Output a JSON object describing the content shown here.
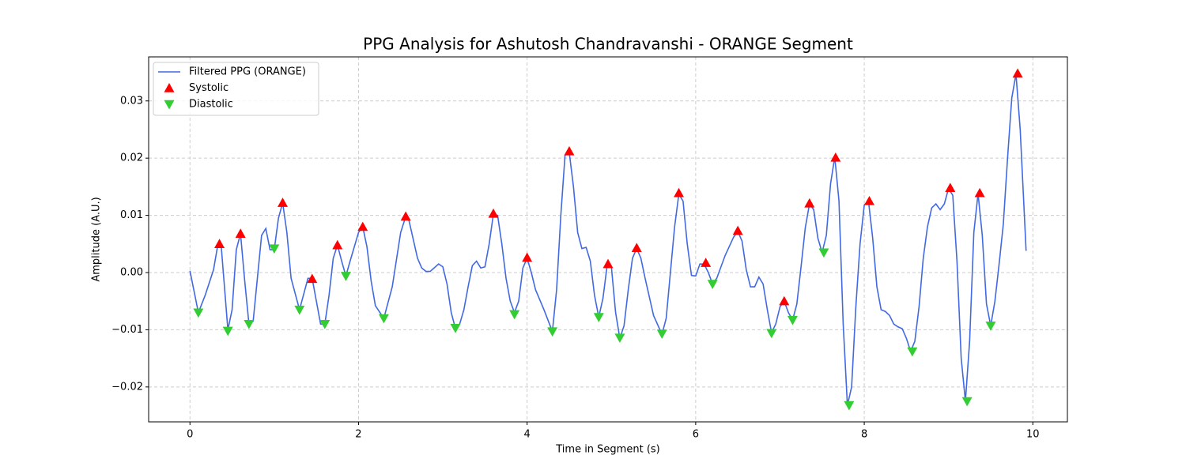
{
  "chart_data": {
    "type": "line",
    "title": "PPG Analysis for Ashutosh Chandravanshi - ORANGE Segment",
    "xlabel": "Time in Segment (s)",
    "ylabel": "Amplitude (A.U.)",
    "xlim": [
      -0.49,
      10.41
    ],
    "ylim": [
      -0.0261,
      0.0377
    ],
    "xticks": [
      0,
      2,
      4,
      6,
      8,
      10
    ],
    "yticks": [
      {
        "value": -0.02,
        "label": "−0.02"
      },
      {
        "value": -0.01,
        "label": "−0.01"
      },
      {
        "value": 0,
        "label": "0.00"
      },
      {
        "value": 0.01,
        "label": "0.01"
      },
      {
        "value": 0.02,
        "label": "0.02"
      },
      {
        "value": 0.03,
        "label": "0.03"
      }
    ],
    "grid": true,
    "legend": "upper-left",
    "series": [
      {
        "name": "Filtered PPG (ORANGE)",
        "color": "#4169e1",
        "marker": "line",
        "x": [
          0,
          0.1,
          0.18,
          0.28,
          0.33,
          0.37,
          0.45,
          0.5,
          0.55,
          0.6,
          0.65,
          0.7,
          0.75,
          0.8,
          0.85,
          0.9,
          0.95,
          1.0,
          1.05,
          1.1,
          1.15,
          1.2,
          1.3,
          1.4,
          1.45,
          1.5,
          1.55,
          1.6,
          1.65,
          1.7,
          1.75,
          1.8,
          1.85,
          1.9,
          2.0,
          2.05,
          2.1,
          2.15,
          2.2,
          2.3,
          2.4,
          2.5,
          2.56,
          2.6,
          2.7,
          2.75,
          2.8,
          2.85,
          2.95,
          3.0,
          3.05,
          3.1,
          3.15,
          3.2,
          3.25,
          3.3,
          3.35,
          3.4,
          3.45,
          3.5,
          3.55,
          3.6,
          3.65,
          3.7,
          3.75,
          3.8,
          3.85,
          3.9,
          3.95,
          4.0,
          4.05,
          4.1,
          4.2,
          4.3,
          4.35,
          4.4,
          4.45,
          4.5,
          4.55,
          4.6,
          4.65,
          4.7,
          4.75,
          4.8,
          4.85,
          4.9,
          4.95,
          5.0,
          5.05,
          5.1,
          5.15,
          5.2,
          5.25,
          5.3,
          5.35,
          5.4,
          5.5,
          5.6,
          5.65,
          5.7,
          5.75,
          5.8,
          5.85,
          5.9,
          5.95,
          6.0,
          6.05,
          6.1,
          6.15,
          6.2,
          6.25,
          6.35,
          6.45,
          6.5,
          6.55,
          6.6,
          6.65,
          6.7,
          6.75,
          6.8,
          6.85,
          6.9,
          6.95,
          7.0,
          7.05,
          7.1,
          7.15,
          7.2,
          7.25,
          7.3,
          7.35,
          7.4,
          7.45,
          7.5,
          7.55,
          7.6,
          7.65,
          7.7,
          7.75,
          7.8,
          7.85,
          7.9,
          7.95,
          8.0,
          8.05,
          8.1,
          8.15,
          8.2,
          8.25,
          8.3,
          8.35,
          8.4,
          8.45,
          8.5,
          8.55,
          8.6,
          8.65,
          8.7,
          8.75,
          8.8,
          8.85,
          8.9,
          8.95,
          9.0,
          9.05,
          9.1,
          9.15,
          9.2,
          9.25,
          9.3,
          9.35,
          9.4,
          9.45,
          9.5,
          9.55,
          9.6,
          9.65,
          9.7,
          9.75,
          9.8,
          9.85,
          9.92
        ],
        "values": [
          0.0003,
          -0.007,
          -0.004,
          0.0005,
          0.0048,
          0.0048,
          -0.01,
          -0.0065,
          0.004,
          0.0068,
          -0.0015,
          -0.009,
          -0.0085,
          -0.001,
          0.0065,
          0.0077,
          0.004,
          0.004,
          0.0095,
          0.0122,
          0.007,
          -0.001,
          -0.0065,
          -0.001,
          -0.001,
          -0.005,
          -0.009,
          -0.009,
          -0.004,
          0.0025,
          0.0048,
          0.002,
          -0.0006,
          0.002,
          0.007,
          0.008,
          0.0045,
          -0.0015,
          -0.0058,
          -0.008,
          -0.0025,
          0.007,
          0.0098,
          0.009,
          0.0025,
          0.0008,
          0.0002,
          0.0002,
          0.0015,
          0.001,
          -0.002,
          -0.007,
          -0.0098,
          -0.009,
          -0.0065,
          -0.0025,
          0.0012,
          0.002,
          0.0008,
          0.001,
          0.005,
          0.0102,
          0.01,
          0.005,
          -0.001,
          -0.005,
          -0.007,
          -0.005,
          0.0008,
          0.0025,
          0,
          -0.003,
          -0.0065,
          -0.0103,
          -0.003,
          0.01,
          0.0205,
          0.021,
          0.015,
          0.007,
          0.0042,
          0.0044,
          0.002,
          -0.004,
          -0.0078,
          -0.0045,
          0.0013,
          0.001,
          -0.007,
          -0.0115,
          -0.0093,
          -0.003,
          0.0025,
          0.0042,
          0.0025,
          -0.001,
          -0.0075,
          -0.0108,
          -0.008,
          0,
          0.008,
          0.0137,
          0.0125,
          0.005,
          -0.0005,
          -0.0006,
          0.0015,
          0.0015,
          0,
          -0.002,
          -0.001,
          0.003,
          0.0062,
          0.0072,
          0.0055,
          0.0005,
          -0.0025,
          -0.0025,
          -0.0008,
          -0.002,
          -0.0065,
          -0.0105,
          -0.009,
          -0.006,
          -0.005,
          -0.007,
          -0.0083,
          -0.0055,
          0.001,
          0.0078,
          0.012,
          0.011,
          0.006,
          0.0035,
          0.0065,
          0.0155,
          0.0202,
          0.0125,
          -0.009,
          -0.0232,
          -0.02,
          -0.006,
          0.005,
          0.0118,
          0.0125,
          0.006,
          -0.0025,
          -0.0065,
          -0.0068,
          -0.0075,
          -0.009,
          -0.0095,
          -0.0098,
          -0.0115,
          -0.0138,
          -0.012,
          -0.006,
          0.0025,
          0.008,
          0.0113,
          0.012,
          0.011,
          0.012,
          0.0147,
          0.0135,
          0.002,
          -0.015,
          -0.0225,
          -0.012,
          0.007,
          0.0138,
          0.0065,
          -0.0055,
          -0.0093,
          -0.005,
          0.0015,
          0.0085,
          0.02,
          0.0305,
          0.0347,
          0.025,
          0.0038
        ]
      },
      {
        "name": "Systolic",
        "color": "#ff0000",
        "marker": "triangle-up",
        "x": [
          0.35,
          0.6,
          1.1,
          1.45,
          1.75,
          2.05,
          2.56,
          3.6,
          4.0,
          4.5,
          4.96,
          5.3,
          5.8,
          6.12,
          6.5,
          7.05,
          7.35,
          7.66,
          8.06,
          9.02,
          9.37,
          9.82
        ],
        "values": [
          0.005,
          0.0068,
          0.0122,
          -0.0011,
          0.0048,
          0.008,
          0.0098,
          0.0103,
          0.0026,
          0.0212,
          0.0015,
          0.0043,
          0.0139,
          0.0017,
          0.0073,
          -0.005,
          0.0121,
          0.0201,
          0.0125,
          0.0148,
          0.0139,
          0.0348
        ]
      },
      {
        "name": "Diastolic",
        "color": "#32cd32",
        "marker": "triangle-down",
        "x": [
          0.1,
          0.45,
          0.7,
          1.0,
          1.3,
          1.6,
          1.85,
          2.3,
          3.15,
          3.85,
          4.3,
          4.85,
          5.1,
          5.6,
          6.2,
          6.9,
          7.15,
          7.52,
          7.82,
          8.57,
          9.22,
          9.5
        ],
        "values": [
          -0.007,
          -0.0102,
          -0.009,
          0.0042,
          -0.0065,
          -0.009,
          -0.0006,
          -0.008,
          -0.0097,
          -0.0073,
          -0.0103,
          -0.0078,
          -0.0114,
          -0.0107,
          -0.002,
          -0.0106,
          -0.0083,
          0.0035,
          -0.0232,
          -0.0138,
          -0.0225,
          -0.0093
        ]
      }
    ]
  }
}
